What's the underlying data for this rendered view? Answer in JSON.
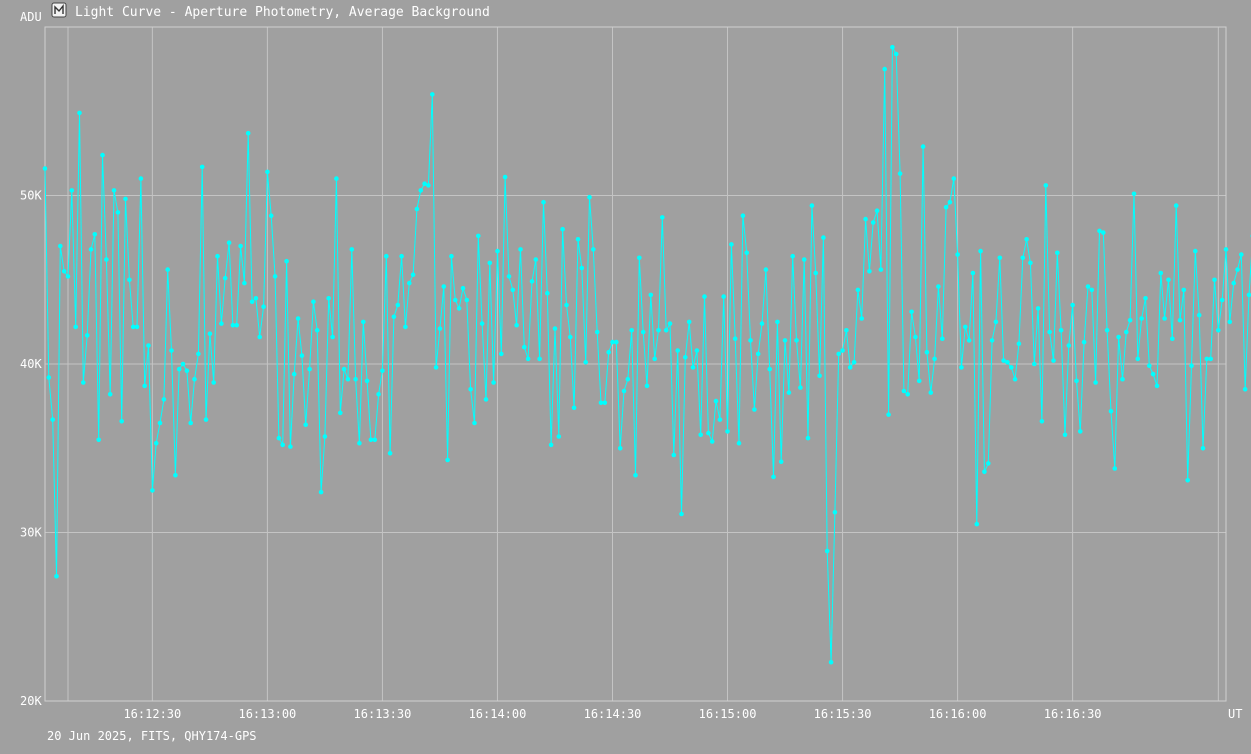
{
  "window": {
    "title": "Light Curve - Aperture Photometry, Average Background",
    "icon": "light-curve-app-icon"
  },
  "footer": {
    "caption": "20 Jun 2025, FITS, QHY174-GPS"
  },
  "colors": {
    "background": "#a0a0a0",
    "grid": "#c4c4c4",
    "series": "#00ffff",
    "text": "#ffffff"
  },
  "chart_data": {
    "type": "line",
    "title": "Light Curve - Aperture Photometry, Average Background",
    "xlabel": "UT",
    "ylabel": "ADU",
    "x_start": "16:12:02",
    "x_step_seconds": 1,
    "xlim": [
      "16:12:02",
      "16:17:10"
    ],
    "ylim": [
      20000,
      60000
    ],
    "y_ticks": [
      20000,
      30000,
      40000,
      50000
    ],
    "y_tick_labels": [
      "20K",
      "30K",
      "40K",
      "50K"
    ],
    "x_ticks": [
      "16:12:30",
      "16:13:00",
      "16:13:30",
      "16:14:00",
      "16:14:30",
      "16:15:00",
      "16:15:30",
      "16:16:00",
      "16:16:30"
    ],
    "grid": true,
    "legend": "none",
    "markers": true,
    "series": [
      {
        "values": [
          51600,
          39200,
          36700,
          27400,
          47000,
          45500,
          45200,
          50300,
          42200,
          54900,
          38900,
          41700,
          46800,
          47700,
          35500,
          52400,
          46200,
          38200,
          50300,
          49000,
          36600,
          49800,
          45000,
          42200,
          42200,
          51000,
          38700,
          41100,
          32500,
          35300,
          36500,
          37900,
          45600,
          40800,
          33400,
          39700,
          40000,
          39600,
          36500,
          39100,
          40600,
          51700,
          36700,
          41800,
          38900,
          46400,
          42400,
          45100,
          47200,
          42300,
          42300,
          47000,
          44800,
          53700,
          43700,
          43900,
          41600,
          43400,
          51400,
          48800,
          45200,
          35600,
          35200,
          46100,
          35100,
          39400,
          42700,
          40500,
          36400,
          39700,
          43700,
          42000,
          32400,
          35700,
          43900,
          41600,
          51000,
          37100,
          39700,
          39100,
          46800,
          39100,
          35300,
          42500,
          39000,
          35500,
          35500,
          38200,
          39600,
          46400,
          34700,
          42800,
          43500,
          46400,
          42200,
          44800,
          45300,
          49200,
          50300,
          50700,
          50600,
          56000,
          39800,
          42100,
          44600,
          34300,
          46400,
          43800,
          43300,
          44500,
          43800,
          38500,
          36500,
          47600,
          42400,
          37900,
          46000,
          38900,
          46700,
          40600,
          51100,
          45200,
          44400,
          42300,
          46800,
          41000,
          40300,
          44900,
          46200,
          40300,
          49600,
          44200,
          35200,
          42100,
          35700,
          48000,
          43500,
          41600,
          37400,
          47400,
          45700,
          40100,
          49900,
          46800,
          41900,
          37700,
          37700,
          40700,
          41300,
          41300,
          35000,
          38400,
          39100,
          42000,
          33400,
          46300,
          41900,
          38700,
          44100,
          40300,
          42000,
          48700,
          42000,
          42400,
          34600,
          40800,
          31100,
          40400,
          42500,
          39800,
          40800,
          35800,
          44000,
          35900,
          35400,
          37800,
          36700,
          44000,
          36000,
          47100,
          41500,
          35300,
          48800,
          46600,
          41400,
          37300,
          40600,
          42400,
          45600,
          39700,
          33300,
          42500,
          34200,
          41400,
          38300,
          46400,
          41400,
          38600,
          46200,
          35600,
          49400,
          45400,
          39300,
          47500,
          28900,
          22300,
          31200,
          40600,
          40800,
          42000,
          39800,
          40100,
          44400,
          42700,
          48600,
          45500,
          48400,
          49100,
          45600,
          57500,
          37000,
          58800,
          58400,
          51300,
          38400,
          38200,
          43100,
          41600,
          39000,
          52900,
          40700,
          38300,
          40300,
          44600,
          41500,
          49300,
          49600,
          51000,
          46500,
          39800,
          42200,
          41400,
          45400,
          30500,
          46700,
          33600,
          34100,
          41400,
          42500,
          46300,
          40200,
          40100,
          39800,
          39100,
          41200,
          46300,
          47400,
          46000,
          40000,
          43300,
          36600,
          50600,
          41900,
          40200,
          46600,
          42000,
          35800,
          41100,
          43500,
          39000,
          36000,
          41300,
          44600,
          44400,
          38900,
          47900,
          47800,
          42000,
          37200,
          33800,
          41600,
          39100,
          41900,
          42600,
          50100,
          40300,
          42700,
          43900,
          39900,
          39400,
          38700,
          45400,
          42700,
          45000,
          41500,
          49400,
          42600,
          44400,
          33100,
          39900,
          46700,
          42900,
          35000,
          40300,
          40300,
          45000,
          42000,
          43800,
          46800,
          42500,
          44800,
          45600,
          46500,
          38500,
          44100,
          47600,
          49400,
          48500,
          45400,
          42100,
          45500,
          48900,
          32800,
          30400,
          32200,
          48000,
          36900,
          41200,
          40400,
          34600,
          43000,
          42900,
          44200,
          46100,
          56400,
          47800,
          40600,
          28800,
          43300,
          41500,
          38400,
          40100,
          37000,
          36300,
          33800,
          39500,
          42400,
          42500,
          37200,
          39000,
          41200,
          45200,
          45000,
          49600,
          48300,
          45000,
          49500,
          54500,
          43200,
          50400,
          58100,
          43400,
          44600,
          43200,
          39800,
          36900,
          44800,
          47900,
          42900,
          41800,
          39800,
          45200,
          43700,
          48400,
          49000,
          40000,
          35100,
          42900,
          43700,
          41000,
          52500,
          33900,
          27900,
          37600,
          42600,
          43500,
          40500,
          41400,
          41400,
          50500,
          46000,
          41400,
          46400,
          42700,
          40500,
          35400,
          40500,
          35700,
          33100,
          41300,
          34400,
          36600,
          46700,
          38400,
          38000,
          43200,
          41400,
          34700,
          45700,
          44900,
          41900
        ]
      }
    ]
  }
}
